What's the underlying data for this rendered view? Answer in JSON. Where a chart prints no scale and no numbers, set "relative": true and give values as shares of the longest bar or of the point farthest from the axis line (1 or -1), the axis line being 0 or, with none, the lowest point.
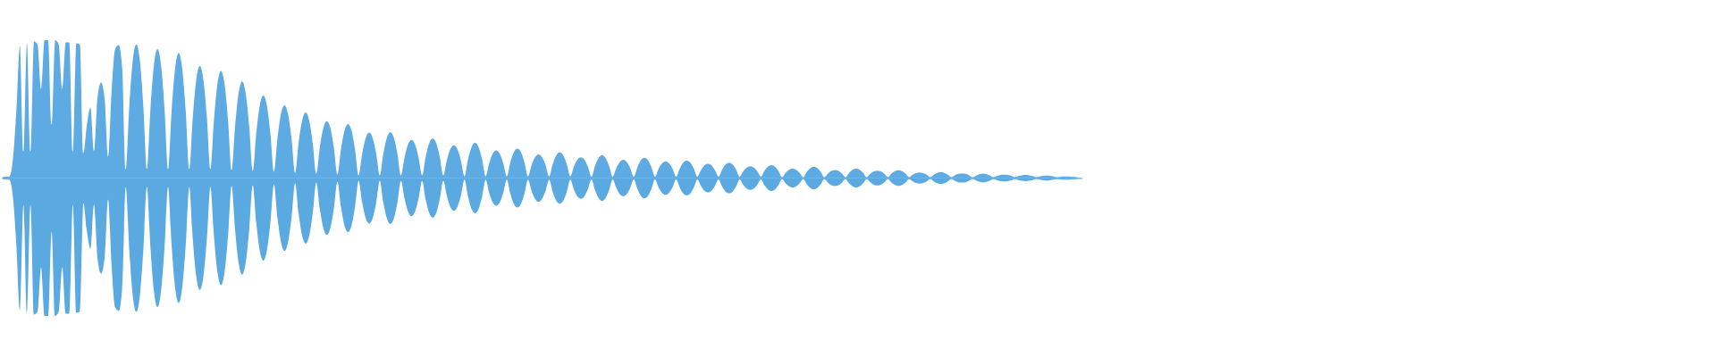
{
  "chart_data": {
    "type": "area",
    "relative": true,
    "categories": [
      null,
      null,
      null,
      null,
      null,
      null,
      null,
      null,
      null,
      null,
      null,
      null,
      null,
      null,
      null,
      null,
      null,
      null,
      null,
      null,
      null,
      null,
      null,
      null,
      null,
      null,
      null,
      null,
      null,
      null,
      null,
      null,
      null,
      null,
      null,
      null,
      null,
      null,
      null,
      null,
      null,
      null,
      null,
      null,
      null,
      null,
      null,
      null,
      null,
      null,
      null,
      null,
      null,
      null,
      null,
      null,
      null,
      null,
      null,
      null,
      null,
      null,
      null,
      null,
      null,
      null,
      null,
      null,
      null,
      null,
      null,
      null,
      null,
      null,
      null,
      null,
      null,
      null,
      null,
      null,
      null,
      null,
      null,
      null,
      null,
      null,
      null,
      null,
      null,
      null,
      null,
      null,
      null,
      null,
      null,
      null,
      null,
      null,
      null,
      null,
      null,
      null,
      null,
      null,
      null,
      null,
      null,
      null,
      null,
      null,
      null,
      null,
      null,
      null,
      null,
      null,
      null,
      null,
      null,
      null,
      null,
      null,
      null,
      null,
      null,
      null,
      null,
      null,
      null,
      null,
      null,
      null,
      null,
      null,
      null,
      null,
      null,
      null,
      null,
      null,
      null,
      null,
      null,
      null,
      null,
      null,
      null,
      null,
      null,
      null,
      null,
      null,
      null,
      null,
      null,
      null,
      null,
      null,
      null,
      null,
      null,
      null,
      null,
      null,
      null,
      null,
      null,
      null,
      null,
      null,
      null,
      null,
      null,
      null,
      null,
      null,
      null,
      null,
      null,
      null,
      null,
      null,
      null,
      null,
      null,
      null,
      null,
      null,
      null,
      null,
      null,
      null,
      null,
      null,
      null,
      null,
      null,
      null,
      null,
      null,
      null,
      null,
      null,
      null,
      null,
      null,
      null,
      null,
      null,
      null,
      null,
      null,
      null,
      null,
      null,
      null,
      null,
      null,
      null,
      null,
      null,
      null,
      null,
      null,
      null,
      null,
      null,
      null,
      null,
      null,
      null,
      null,
      null,
      null,
      null,
      null,
      null,
      null,
      null,
      null,
      null,
      null,
      null,
      null,
      null,
      null,
      null,
      null,
      null,
      null,
      null,
      null,
      null,
      null,
      null,
      null,
      null,
      null,
      null,
      null,
      null,
      null,
      null,
      null,
      null,
      null,
      null,
      null,
      null,
      null,
      null,
      null,
      null,
      null,
      null,
      null,
      null,
      null,
      null,
      null,
      null,
      null,
      null,
      null,
      null,
      null,
      null,
      null,
      null,
      null,
      null,
      null,
      null,
      null,
      null,
      null,
      null,
      null,
      null,
      null,
      null,
      null,
      null,
      null,
      null,
      null,
      null
    ],
    "series": [
      {
        "color": "#5dabe2",
        "values": [
          0.006,
          0.01,
          0.012,
          0.13,
          0.486,
          0.958,
          0.194,
          0.978,
          0.194,
          0.99,
          0.97,
          0.648,
          1,
          1,
          0.388,
          1,
          0.97,
          0.648,
          0.984,
          0.984,
          0.194,
          0.978,
          0.97,
          0.182,
          0.388,
          0.512,
          0.194,
          0.582,
          0.692,
          0.582,
          0.156,
          0.634,
          0.936,
          0.964,
          0.796,
          0.064,
          0.518,
          0.854,
          0.97,
          0.854,
          0.518,
          0.064,
          0.5,
          0.822,
          0.936,
          0.822,
          0.5,
          0.064,
          0.486,
          0.796,
          0.906,
          0.796,
          0.486,
          0.064,
          0.438,
          0.716,
          0.812,
          0.716,
          0.438,
          0.064,
          0.42,
          0.684,
          0.776,
          0.684,
          0.418,
          0.058,
          0.378,
          0.616,
          0.7,
          0.614,
          0.376,
          0.052,
          0.326,
          0.528,
          0.598,
          0.526,
          0.322,
          0.046,
          0.286,
          0.464,
          0.528,
          0.464,
          0.284,
          0.038,
          0.258,
          0.418,
          0.476,
          0.418,
          0.254,
          0.032,
          0.222,
          0.362,
          0.412,
          0.362,
          0.218,
          0.026,
          0.208,
          0.344,
          0.392,
          0.344,
          0.206,
          0.02,
          0.174,
          0.29,
          0.33,
          0.29,
          0.174,
          0.02,
          0.176,
          0.292,
          0.334,
          0.292,
          0.176,
          0.02,
          0.148,
          0.242,
          0.276,
          0.242,
          0.148,
          0.02,
          0.154,
          0.252,
          0.286,
          0.252,
          0.154,
          0.02,
          0.128,
          0.21,
          0.238,
          0.208,
          0.126,
          0.012,
          0.134,
          0.224,
          0.256,
          0.224,
          0.134,
          0.012,
          0.106,
          0.176,
          0.2,
          0.176,
          0.106,
          0.012,
          0.114,
          0.188,
          0.214,
          0.188,
          0.114,
          0.012,
          0.092,
          0.15,
          0.172,
          0.15,
          0.092,
          0.012,
          0.1,
          0.164,
          0.186,
          0.164,
          0.1,
          0.012,
          0.082,
          0.132,
          0.15,
          0.132,
          0.08,
          0.01,
          0.088,
          0.144,
          0.166,
          0.144,
          0.088,
          0.01,
          0.07,
          0.116,
          0.132,
          0.116,
          0.07,
          0.01,
          0.078,
          0.13,
          0.148,
          0.13,
          0.078,
          0.01,
          0.066,
          0.106,
          0.122,
          0.106,
          0.066,
          0.01,
          0.068,
          0.112,
          0.126,
          0.112,
          0.068,
          0.01,
          0.056,
          0.092,
          0.104,
          0.092,
          0.056,
          0.01,
          0.06,
          0.098,
          0.11,
          0.098,
          0.06,
          0.01,
          0.048,
          0.076,
          0.086,
          0.076,
          0.048,
          0.01,
          0.052,
          0.082,
          0.094,
          0.082,
          0.05,
          0.006,
          0.038,
          0.06,
          0.068,
          0.06,
          0.038,
          0.006,
          0.044,
          0.072,
          0.082,
          0.072,
          0.044,
          0.006,
          0.032,
          0.052,
          0.058,
          0.052,
          0.032,
          0.006,
          0.038,
          0.06,
          0.068,
          0.06,
          0.038,
          0.006,
          0.03,
          0.048,
          0.054,
          0.048,
          0.03,
          0.006,
          0.032,
          0.05,
          0.056,
          0.05,
          0.032,
          0.006,
          0.024,
          0.036,
          0.04,
          0.036,
          0.024,
          0.006,
          0.024,
          0.038,
          0.044,
          0.038,
          0.024,
          0.006,
          0.02,
          0.03,
          0.032,
          0.03,
          0.02,
          0.006,
          0.018,
          0.028,
          0.032,
          0.028,
          0.018,
          0.006,
          0.016,
          0.022,
          0.024,
          0.022,
          0.016,
          0.006,
          0.014,
          0.02,
          0.022,
          0.02,
          0.014,
          0.006,
          0.012,
          0.016,
          0.018,
          0.016,
          0.012,
          0.006,
          0.01,
          0.012,
          0.012,
          0.01,
          0.008,
          0.004,
          0.002
        ]
      },
      {
        "color": "#5ba9e1",
        "values": [
          -0.006,
          -0.01,
          -0.012,
          -0.13,
          -0.486,
          -0.958,
          -0.194,
          -0.978,
          -0.194,
          -0.99,
          -0.97,
          -0.648,
          -1,
          -1,
          -0.388,
          -1,
          -0.97,
          -0.648,
          -0.984,
          -0.984,
          -0.194,
          -0.978,
          -0.97,
          -0.182,
          -0.388,
          -0.512,
          -0.194,
          -0.582,
          -0.692,
          -0.582,
          -0.156,
          -0.634,
          -0.936,
          -0.964,
          -0.796,
          -0.064,
          -0.518,
          -0.854,
          -0.97,
          -0.854,
          -0.518,
          -0.064,
          -0.5,
          -0.822,
          -0.936,
          -0.822,
          -0.5,
          -0.064,
          -0.486,
          -0.796,
          -0.906,
          -0.796,
          -0.486,
          -0.064,
          -0.438,
          -0.716,
          -0.812,
          -0.716,
          -0.438,
          -0.064,
          -0.42,
          -0.684,
          -0.776,
          -0.684,
          -0.418,
          -0.058,
          -0.378,
          -0.616,
          -0.7,
          -0.614,
          -0.376,
          -0.052,
          -0.326,
          -0.528,
          -0.598,
          -0.526,
          -0.322,
          -0.046,
          -0.286,
          -0.464,
          -0.528,
          -0.464,
          -0.284,
          -0.038,
          -0.258,
          -0.418,
          -0.476,
          -0.418,
          -0.254,
          -0.032,
          -0.222,
          -0.362,
          -0.412,
          -0.362,
          -0.218,
          -0.026,
          -0.208,
          -0.344,
          -0.392,
          -0.344,
          -0.206,
          -0.02,
          -0.174,
          -0.29,
          -0.33,
          -0.29,
          -0.174,
          -0.02,
          -0.176,
          -0.292,
          -0.334,
          -0.292,
          -0.176,
          -0.02,
          -0.148,
          -0.242,
          -0.276,
          -0.242,
          -0.148,
          -0.02,
          -0.154,
          -0.252,
          -0.286,
          -0.252,
          -0.154,
          -0.02,
          -0.128,
          -0.21,
          -0.238,
          -0.208,
          -0.126,
          -0.012,
          -0.134,
          -0.224,
          -0.256,
          -0.224,
          -0.134,
          -0.012,
          -0.106,
          -0.176,
          -0.2,
          -0.176,
          -0.106,
          -0.012,
          -0.114,
          -0.188,
          -0.214,
          -0.188,
          -0.114,
          -0.012,
          -0.092,
          -0.15,
          -0.172,
          -0.15,
          -0.092,
          -0.012,
          -0.1,
          -0.164,
          -0.186,
          -0.164,
          -0.1,
          -0.012,
          -0.082,
          -0.132,
          -0.15,
          -0.132,
          -0.08,
          -0.01,
          -0.088,
          -0.144,
          -0.166,
          -0.144,
          -0.088,
          -0.01,
          -0.07,
          -0.116,
          -0.132,
          -0.116,
          -0.07,
          -0.01,
          -0.078,
          -0.13,
          -0.148,
          -0.13,
          -0.078,
          -0.01,
          -0.066,
          -0.106,
          -0.122,
          -0.106,
          -0.066,
          -0.01,
          -0.068,
          -0.112,
          -0.126,
          -0.112,
          -0.068,
          -0.01,
          -0.056,
          -0.092,
          -0.104,
          -0.092,
          -0.056,
          -0.01,
          -0.06,
          -0.098,
          -0.11,
          -0.098,
          -0.06,
          -0.01,
          -0.048,
          -0.076,
          -0.086,
          -0.076,
          -0.048,
          -0.01,
          -0.052,
          -0.082,
          -0.094,
          -0.082,
          -0.05,
          -0.006,
          -0.038,
          -0.06,
          -0.068,
          -0.06,
          -0.038,
          -0.006,
          -0.044,
          -0.072,
          -0.082,
          -0.072,
          -0.044,
          -0.006,
          -0.032,
          -0.052,
          -0.058,
          -0.052,
          -0.032,
          -0.006,
          -0.038,
          -0.06,
          -0.068,
          -0.06,
          -0.038,
          -0.006,
          -0.03,
          -0.048,
          -0.054,
          -0.048,
          -0.03,
          -0.006,
          -0.032,
          -0.05,
          -0.056,
          -0.05,
          -0.032,
          -0.006,
          -0.024,
          -0.036,
          -0.04,
          -0.036,
          -0.024,
          -0.006,
          -0.024,
          -0.038,
          -0.044,
          -0.038,
          -0.024,
          -0.006,
          -0.02,
          -0.03,
          -0.032,
          -0.03,
          -0.02,
          -0.006,
          -0.018,
          -0.028,
          -0.032,
          -0.028,
          -0.018,
          -0.006,
          -0.016,
          -0.022,
          -0.024,
          -0.022,
          -0.016,
          -0.006,
          -0.014,
          -0.02,
          -0.022,
          -0.02,
          -0.014,
          -0.006,
          -0.012,
          -0.016,
          -0.018,
          -0.016,
          -0.012,
          -0.006,
          -0.01,
          -0.012,
          -0.012,
          -0.01,
          -0.008,
          -0.004,
          -0.002
        ]
      }
    ]
  }
}
